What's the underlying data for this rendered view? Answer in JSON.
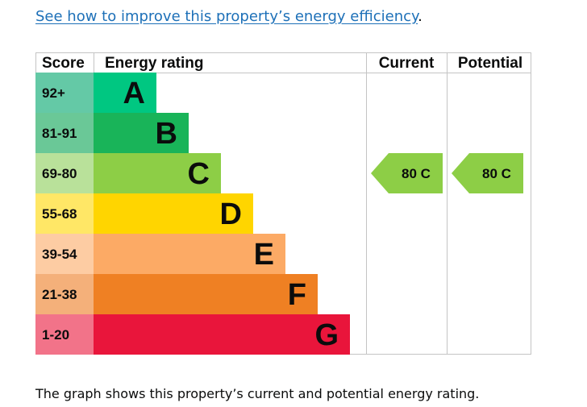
{
  "link": {
    "text": "See how to improve this property’s energy efficiency",
    "suffix": "."
  },
  "chart_data": {
    "type": "bar",
    "title": "Energy rating",
    "columns": {
      "score": "Score",
      "rating": "Energy rating",
      "current": "Current",
      "potential": "Potential"
    },
    "bands": [
      {
        "range": "92+",
        "letter": "A",
        "color": "#00c781",
        "score_bg": "#64c9a6"
      },
      {
        "range": "81-91",
        "letter": "B",
        "color": "#19b459",
        "score_bg": "#6ac897"
      },
      {
        "range": "69-80",
        "letter": "C",
        "color": "#8dce46",
        "score_bg": "#b9e19a"
      },
      {
        "range": "55-68",
        "letter": "D",
        "color": "#ffd500",
        "score_bg": "#ffe766"
      },
      {
        "range": "39-54",
        "letter": "E",
        "color": "#fcaa65",
        "score_bg": "#fdcca3"
      },
      {
        "range": "21-38",
        "letter": "F",
        "color": "#ef8023",
        "score_bg": "#f4b07a"
      },
      {
        "range": "1-20",
        "letter": "G",
        "color": "#e9153b",
        "score_bg": "#f27389"
      }
    ],
    "current": {
      "value": 80,
      "band": "C",
      "label": "80 C",
      "color": "#8dce46"
    },
    "potential": {
      "value": 80,
      "band": "C",
      "label": "80 C",
      "color": "#8dce46"
    }
  },
  "caption": "The graph shows this property’s current and potential energy rating."
}
